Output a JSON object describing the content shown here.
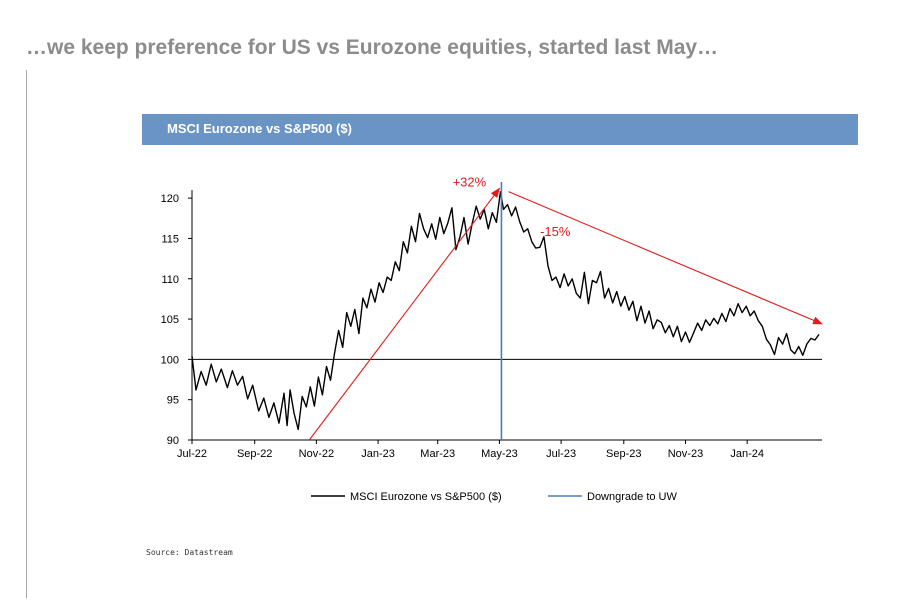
{
  "headline": "…we keep preference for US vs Eurozone equities, started last May…",
  "source": "Source: Datastream",
  "colors": {
    "banner": "#6a93c6",
    "series": "#000000",
    "marker_line": "#4a7ebb",
    "annotation": "#e31b1b"
  },
  "chart_data": {
    "type": "line",
    "title": "MSCI Eurozone vs S&P500 ($)",
    "x_axis": {
      "type": "date",
      "ticks": [
        "Jul-22",
        "Sep-22",
        "Nov-22",
        "Jan-23",
        "Mar-23",
        "May-23",
        "Jul-23",
        "Sep-23",
        "Nov-23",
        "Jan-24"
      ],
      "range": [
        "2022-07-01",
        "2024-03-15"
      ]
    },
    "y_axis": {
      "ticks": [
        90,
        95,
        100,
        105,
        110,
        115,
        120
      ],
      "ylim": [
        90,
        122
      ]
    },
    "baseline": 100,
    "series": [
      {
        "name": "MSCI Eurozone vs S&P500 ($)",
        "color": "#000000",
        "points": [
          [
            "2022-07-01",
            100.4
          ],
          [
            "2022-07-05",
            96.2
          ],
          [
            "2022-07-10",
            98.5
          ],
          [
            "2022-07-15",
            96.8
          ],
          [
            "2022-07-20",
            99.4
          ],
          [
            "2022-07-25",
            97.2
          ],
          [
            "2022-07-30",
            98.8
          ],
          [
            "2022-08-05",
            96.5
          ],
          [
            "2022-08-10",
            98.6
          ],
          [
            "2022-08-15",
            96.8
          ],
          [
            "2022-08-20",
            97.9
          ],
          [
            "2022-08-25",
            95.1
          ],
          [
            "2022-08-30",
            96.8
          ],
          [
            "2022-09-05",
            93.6
          ],
          [
            "2022-09-10",
            95.2
          ],
          [
            "2022-09-15",
            92.8
          ],
          [
            "2022-09-20",
            94.6
          ],
          [
            "2022-09-25",
            92.1
          ],
          [
            "2022-09-30",
            95.8
          ],
          [
            "2022-10-03",
            91.8
          ],
          [
            "2022-10-06",
            96.2
          ],
          [
            "2022-10-10",
            93.3
          ],
          [
            "2022-10-14",
            91.3
          ],
          [
            "2022-10-18",
            95.4
          ],
          [
            "2022-10-22",
            94.1
          ],
          [
            "2022-10-26",
            96.6
          ],
          [
            "2022-10-30",
            94.2
          ],
          [
            "2022-11-03",
            97.8
          ],
          [
            "2022-11-07",
            95.6
          ],
          [
            "2022-11-11",
            99.1
          ],
          [
            "2022-11-15",
            97.4
          ],
          [
            "2022-11-19",
            100.8
          ],
          [
            "2022-11-23",
            103.6
          ],
          [
            "2022-11-27",
            101.5
          ],
          [
            "2022-12-01",
            105.8
          ],
          [
            "2022-12-05",
            104.1
          ],
          [
            "2022-12-09",
            106.2
          ],
          [
            "2022-12-13",
            103.2
          ],
          [
            "2022-12-17",
            107.6
          ],
          [
            "2022-12-21",
            106.4
          ],
          [
            "2022-12-25",
            108.7
          ],
          [
            "2022-12-29",
            107.1
          ],
          [
            "2023-01-02",
            109.5
          ],
          [
            "2023-01-06",
            108.3
          ],
          [
            "2023-01-10",
            110.2
          ],
          [
            "2023-01-14",
            109.8
          ],
          [
            "2023-01-18",
            112.1
          ],
          [
            "2023-01-22",
            111.0
          ],
          [
            "2023-01-26",
            114.6
          ],
          [
            "2023-01-30",
            113.2
          ],
          [
            "2023-02-03",
            116.5
          ],
          [
            "2023-02-07",
            114.6
          ],
          [
            "2023-02-11",
            118.1
          ],
          [
            "2023-02-15",
            116.2
          ],
          [
            "2023-02-19",
            115.1
          ],
          [
            "2023-02-23",
            116.8
          ],
          [
            "2023-02-27",
            114.9
          ],
          [
            "2023-03-03",
            117.6
          ],
          [
            "2023-03-07",
            115.6
          ],
          [
            "2023-03-11",
            116.9
          ],
          [
            "2023-03-15",
            118.8
          ],
          [
            "2023-03-19",
            113.6
          ],
          [
            "2023-03-23",
            115.2
          ],
          [
            "2023-03-27",
            117.6
          ],
          [
            "2023-03-31",
            114.3
          ],
          [
            "2023-04-04",
            116.8
          ],
          [
            "2023-04-08",
            119.0
          ],
          [
            "2023-04-12",
            117.4
          ],
          [
            "2023-04-16",
            118.6
          ],
          [
            "2023-04-20",
            116.2
          ],
          [
            "2023-04-24",
            118.2
          ],
          [
            "2023-04-28",
            117.0
          ],
          [
            "2023-05-02",
            120.8
          ],
          [
            "2023-05-05",
            118.6
          ],
          [
            "2023-05-09",
            119.2
          ],
          [
            "2023-05-13",
            117.8
          ],
          [
            "2023-05-17",
            118.9
          ],
          [
            "2023-05-21",
            117.1
          ],
          [
            "2023-05-25",
            115.8
          ],
          [
            "2023-05-29",
            116.2
          ],
          [
            "2023-06-02",
            114.6
          ],
          [
            "2023-06-06",
            113.8
          ],
          [
            "2023-06-10",
            113.9
          ],
          [
            "2023-06-14",
            115.2
          ],
          [
            "2023-06-18",
            111.6
          ],
          [
            "2023-06-22",
            109.8
          ],
          [
            "2023-06-26",
            110.2
          ],
          [
            "2023-06-30",
            108.9
          ],
          [
            "2023-07-04",
            110.6
          ],
          [
            "2023-07-08",
            109.1
          ],
          [
            "2023-07-12",
            110.0
          ],
          [
            "2023-07-16",
            108.2
          ],
          [
            "2023-07-20",
            107.6
          ],
          [
            "2023-07-24",
            110.8
          ],
          [
            "2023-07-28",
            106.9
          ],
          [
            "2023-08-01",
            109.8
          ],
          [
            "2023-08-05",
            109.5
          ],
          [
            "2023-08-09",
            110.9
          ],
          [
            "2023-08-13",
            107.6
          ],
          [
            "2023-08-17",
            108.8
          ],
          [
            "2023-08-21",
            107.0
          ],
          [
            "2023-08-25",
            108.4
          ],
          [
            "2023-08-29",
            106.6
          ],
          [
            "2023-09-02",
            107.8
          ],
          [
            "2023-09-06",
            106.1
          ],
          [
            "2023-09-10",
            107.2
          ],
          [
            "2023-09-14",
            104.8
          ],
          [
            "2023-09-18",
            106.6
          ],
          [
            "2023-09-22",
            104.5
          ],
          [
            "2023-09-26",
            106.0
          ],
          [
            "2023-09-30",
            103.8
          ],
          [
            "2023-10-04",
            104.9
          ],
          [
            "2023-10-08",
            104.6
          ],
          [
            "2023-10-12",
            103.3
          ],
          [
            "2023-10-16",
            104.2
          ],
          [
            "2023-10-20",
            102.8
          ],
          [
            "2023-10-24",
            104.1
          ],
          [
            "2023-10-28",
            102.2
          ],
          [
            "2023-11-01",
            103.4
          ],
          [
            "2023-11-05",
            102.1
          ],
          [
            "2023-11-09",
            103.3
          ],
          [
            "2023-11-13",
            104.5
          ],
          [
            "2023-11-17",
            103.6
          ],
          [
            "2023-11-21",
            104.9
          ],
          [
            "2023-11-25",
            104.2
          ],
          [
            "2023-11-29",
            105.1
          ],
          [
            "2023-12-03",
            104.4
          ],
          [
            "2023-12-07",
            105.7
          ],
          [
            "2023-12-11",
            104.7
          ],
          [
            "2023-12-15",
            106.3
          ],
          [
            "2023-12-19",
            105.4
          ],
          [
            "2023-12-23",
            106.9
          ],
          [
            "2023-12-27",
            105.8
          ],
          [
            "2023-12-31",
            106.6
          ],
          [
            "2024-01-04",
            105.4
          ],
          [
            "2024-01-08",
            106.0
          ],
          [
            "2024-01-12",
            104.8
          ],
          [
            "2024-01-16",
            104.1
          ],
          [
            "2024-01-20",
            102.5
          ],
          [
            "2024-01-24",
            101.8
          ],
          [
            "2024-01-28",
            100.6
          ],
          [
            "2024-02-01",
            102.7
          ],
          [
            "2024-02-05",
            101.9
          ],
          [
            "2024-02-09",
            103.2
          ],
          [
            "2024-02-13",
            101.2
          ],
          [
            "2024-02-17",
            100.7
          ],
          [
            "2024-02-21",
            101.6
          ],
          [
            "2024-02-25",
            100.5
          ],
          [
            "2024-02-29",
            101.9
          ],
          [
            "2024-03-04",
            102.6
          ],
          [
            "2024-03-08",
            102.4
          ],
          [
            "2024-03-12",
            103.1
          ]
        ]
      }
    ],
    "vertical_marker": {
      "name": "Downgrade to UW",
      "date": "2023-05-03",
      "color": "#4a7ebb"
    },
    "annotations": [
      {
        "label": "+32%",
        "from": [
          "2022-10-25",
          90.0
        ],
        "to": [
          "2023-05-01",
          121.2
        ],
        "color": "#e31b1b"
      },
      {
        "label": "-15%",
        "from": [
          "2023-05-10",
          120.8
        ],
        "to": [
          "2024-03-15",
          104.4
        ],
        "color": "#e31b1b"
      }
    ],
    "legend": {
      "position": "bottom",
      "items": [
        "MSCI Eurozone vs S&P500 ($)",
        "Downgrade to UW"
      ]
    }
  }
}
